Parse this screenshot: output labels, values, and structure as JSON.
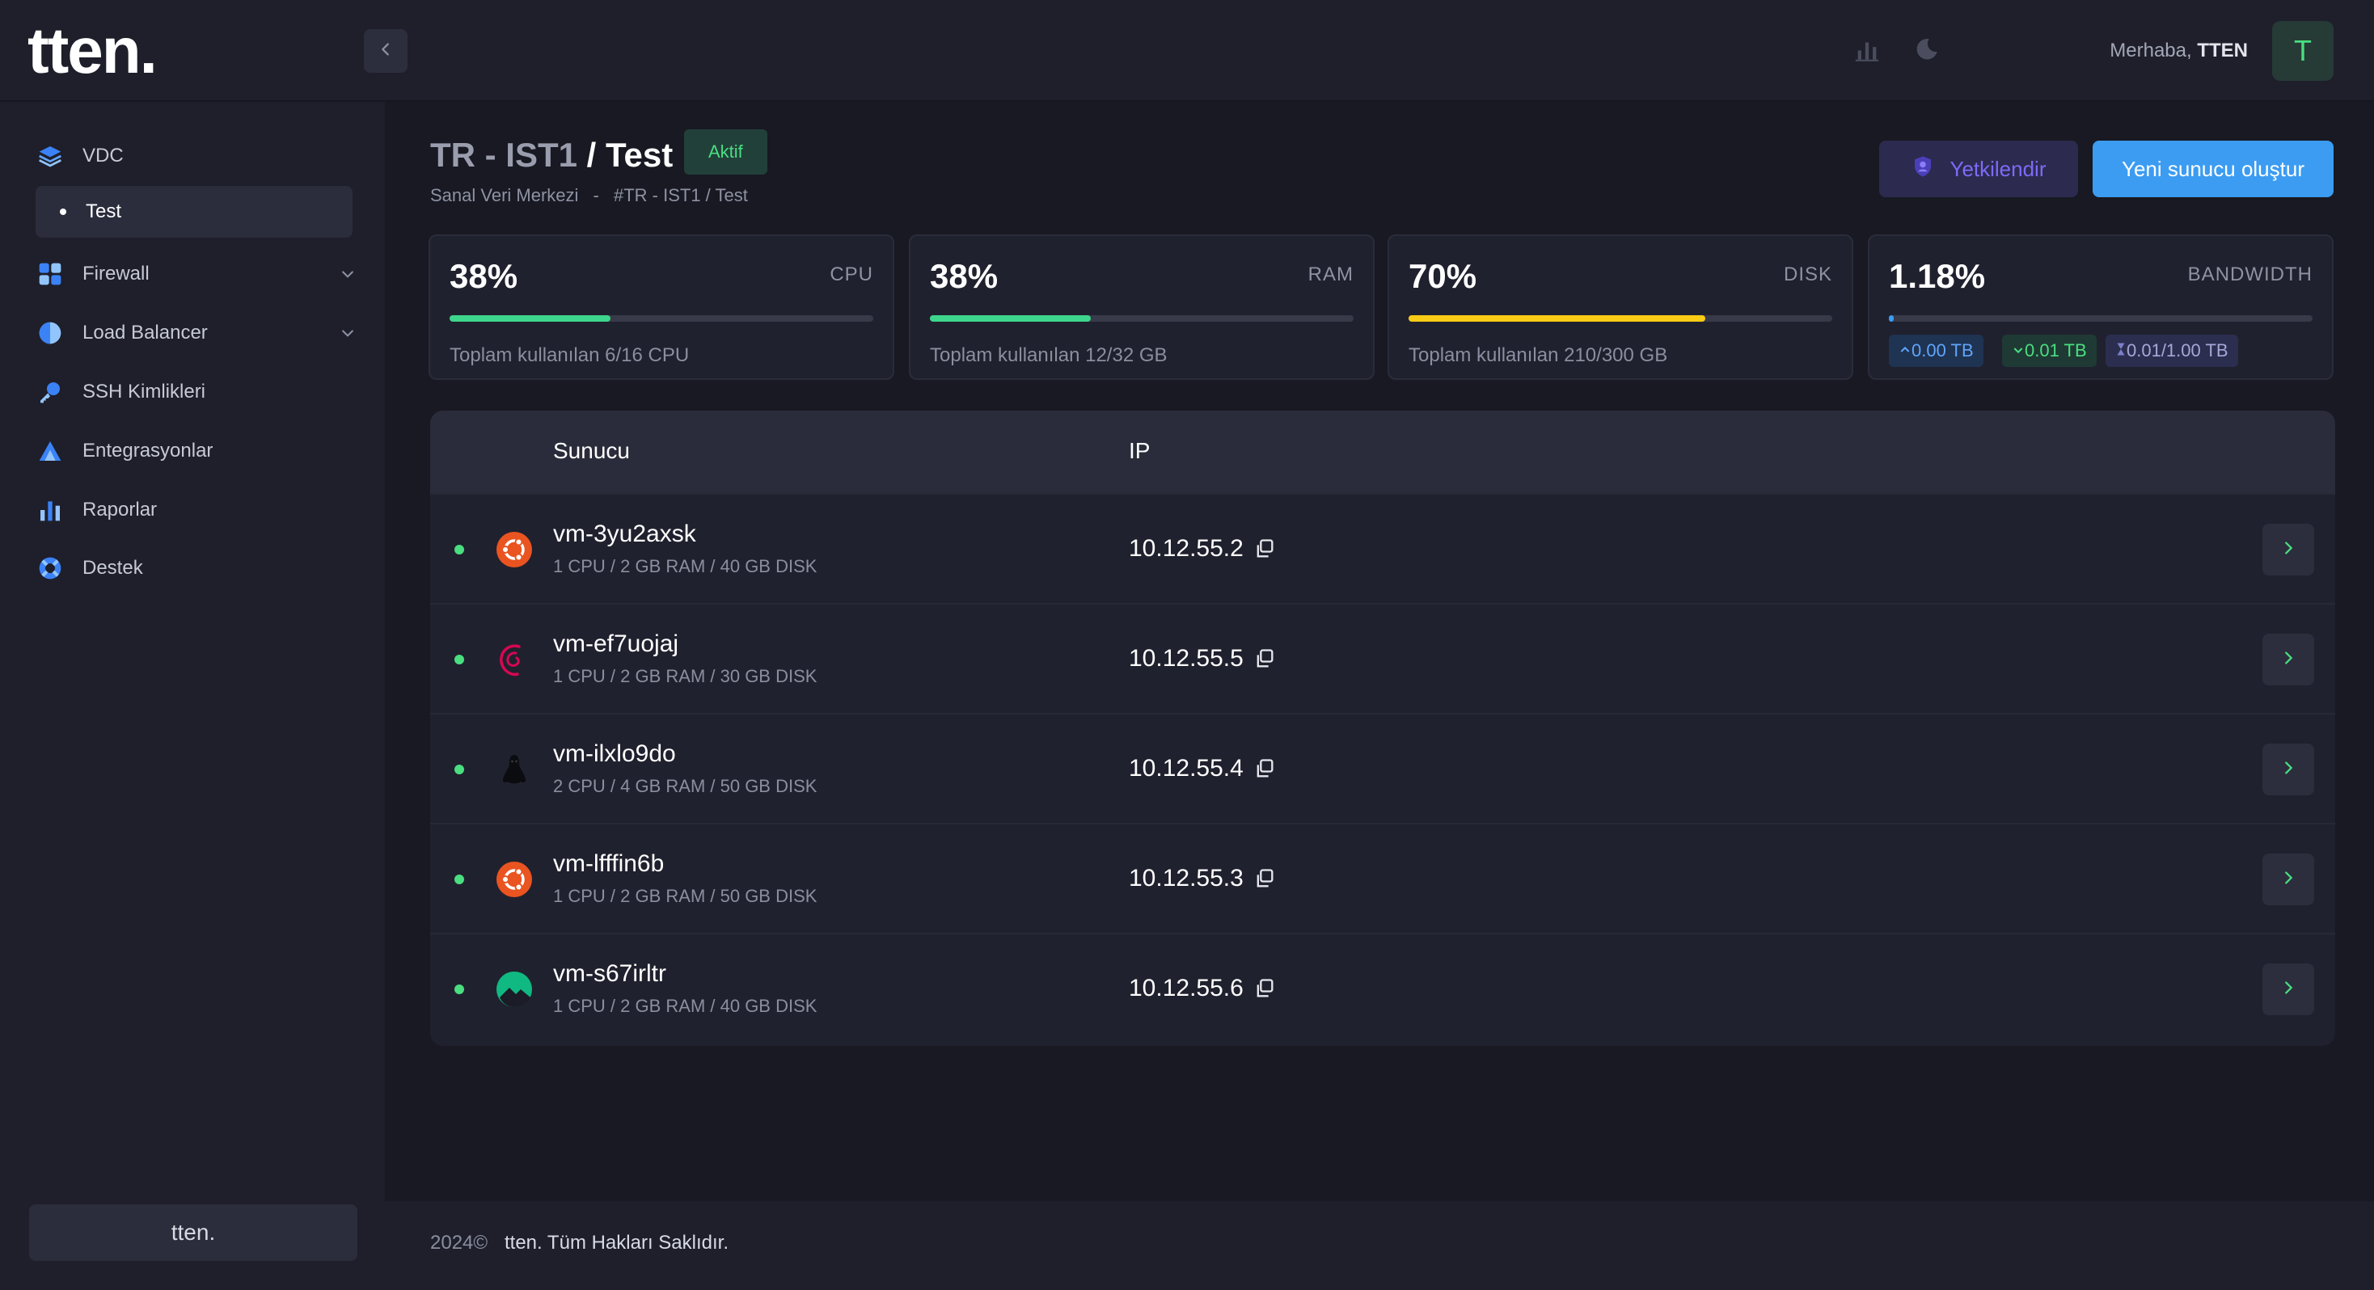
{
  "header": {
    "logo": "tten.",
    "greeting_prefix": "Merhaba,",
    "greeting_name": "TTEN",
    "avatar_letter": "T",
    "icons": [
      "chevron-left-icon",
      "bar-chart-icon",
      "moon-icon"
    ]
  },
  "sidebar": {
    "items": [
      {
        "label": "VDC",
        "icon": "layers-icon"
      },
      {
        "label": "Test"
      },
      {
        "label": "Firewall",
        "icon": "grid-icon"
      },
      {
        "label": "Load Balancer",
        "icon": "half-circle-icon"
      },
      {
        "label": "SSH Kimlikleri",
        "icon": "key-icon"
      },
      {
        "label": "Entegrasyonlar",
        "icon": "triangle-icon"
      },
      {
        "label": "Raporlar",
        "icon": "bar-chart-icon"
      },
      {
        "label": "Destek",
        "icon": "lifebuoy-icon"
      }
    ],
    "footer": "tten."
  },
  "page": {
    "title_a": "TR - IST1",
    "title_b": " / Test",
    "status": "Aktif",
    "breadcrumb_a": "Sanal Veri Merkezi",
    "breadcrumb_sep": "-",
    "breadcrumb_b": "#TR - IST1 / Test",
    "auth_button": "Yetkilendir",
    "create_button": "Yeni sunucu oluştur"
  },
  "stats": [
    {
      "pct": "38%",
      "label": "CPU",
      "fill": 0.38,
      "color": "#3dd68c",
      "sub": "Toplam kullanılan 6/16 CPU"
    },
    {
      "pct": "38%",
      "label": "RAM",
      "fill": 0.38,
      "color": "#3dd68c",
      "sub": "Toplam kullanılan 12/32 GB"
    },
    {
      "pct": "70%",
      "label": "DISK",
      "fill": 0.7,
      "color": "#facc15",
      "sub": "Toplam kullanılan 210/300 GB"
    },
    {
      "pct": "1.18%",
      "label": "BANDWIDTH",
      "fill": 0.0118,
      "color": "#3b9cf2",
      "tags": [
        "0.00 TB",
        "0.01 TB",
        "0.01/1.00 TB"
      ]
    }
  ],
  "table": {
    "headers": [
      "Sunucu",
      "IP"
    ],
    "rows": [
      {
        "name": "vm-3yu2axsk",
        "spec": "1 CPU / 2 GB RAM / 40 GB DISK",
        "ip": "10.12.55.2",
        "os": "ubuntu-icon"
      },
      {
        "name": "vm-ef7uojaj",
        "spec": "1 CPU / 2 GB RAM / 30 GB DISK",
        "ip": "10.12.55.5",
        "os": "debian-icon"
      },
      {
        "name": "vm-ilxlo9do",
        "spec": "2 CPU / 4 GB RAM / 50 GB DISK",
        "ip": "10.12.55.4",
        "os": "linux-icon"
      },
      {
        "name": "vm-lfffin6b",
        "spec": "1 CPU / 2 GB RAM / 50 GB DISK",
        "ip": "10.12.55.3",
        "os": "ubuntu-icon"
      },
      {
        "name": "vm-s67irltr",
        "spec": "1 CPU / 2 GB RAM / 40 GB DISK",
        "ip": "10.12.55.6",
        "os": "rocky-icon"
      }
    ]
  },
  "footer": {
    "year": "2024©",
    "rights": "tten. Tüm Hakları Saklıdır."
  }
}
